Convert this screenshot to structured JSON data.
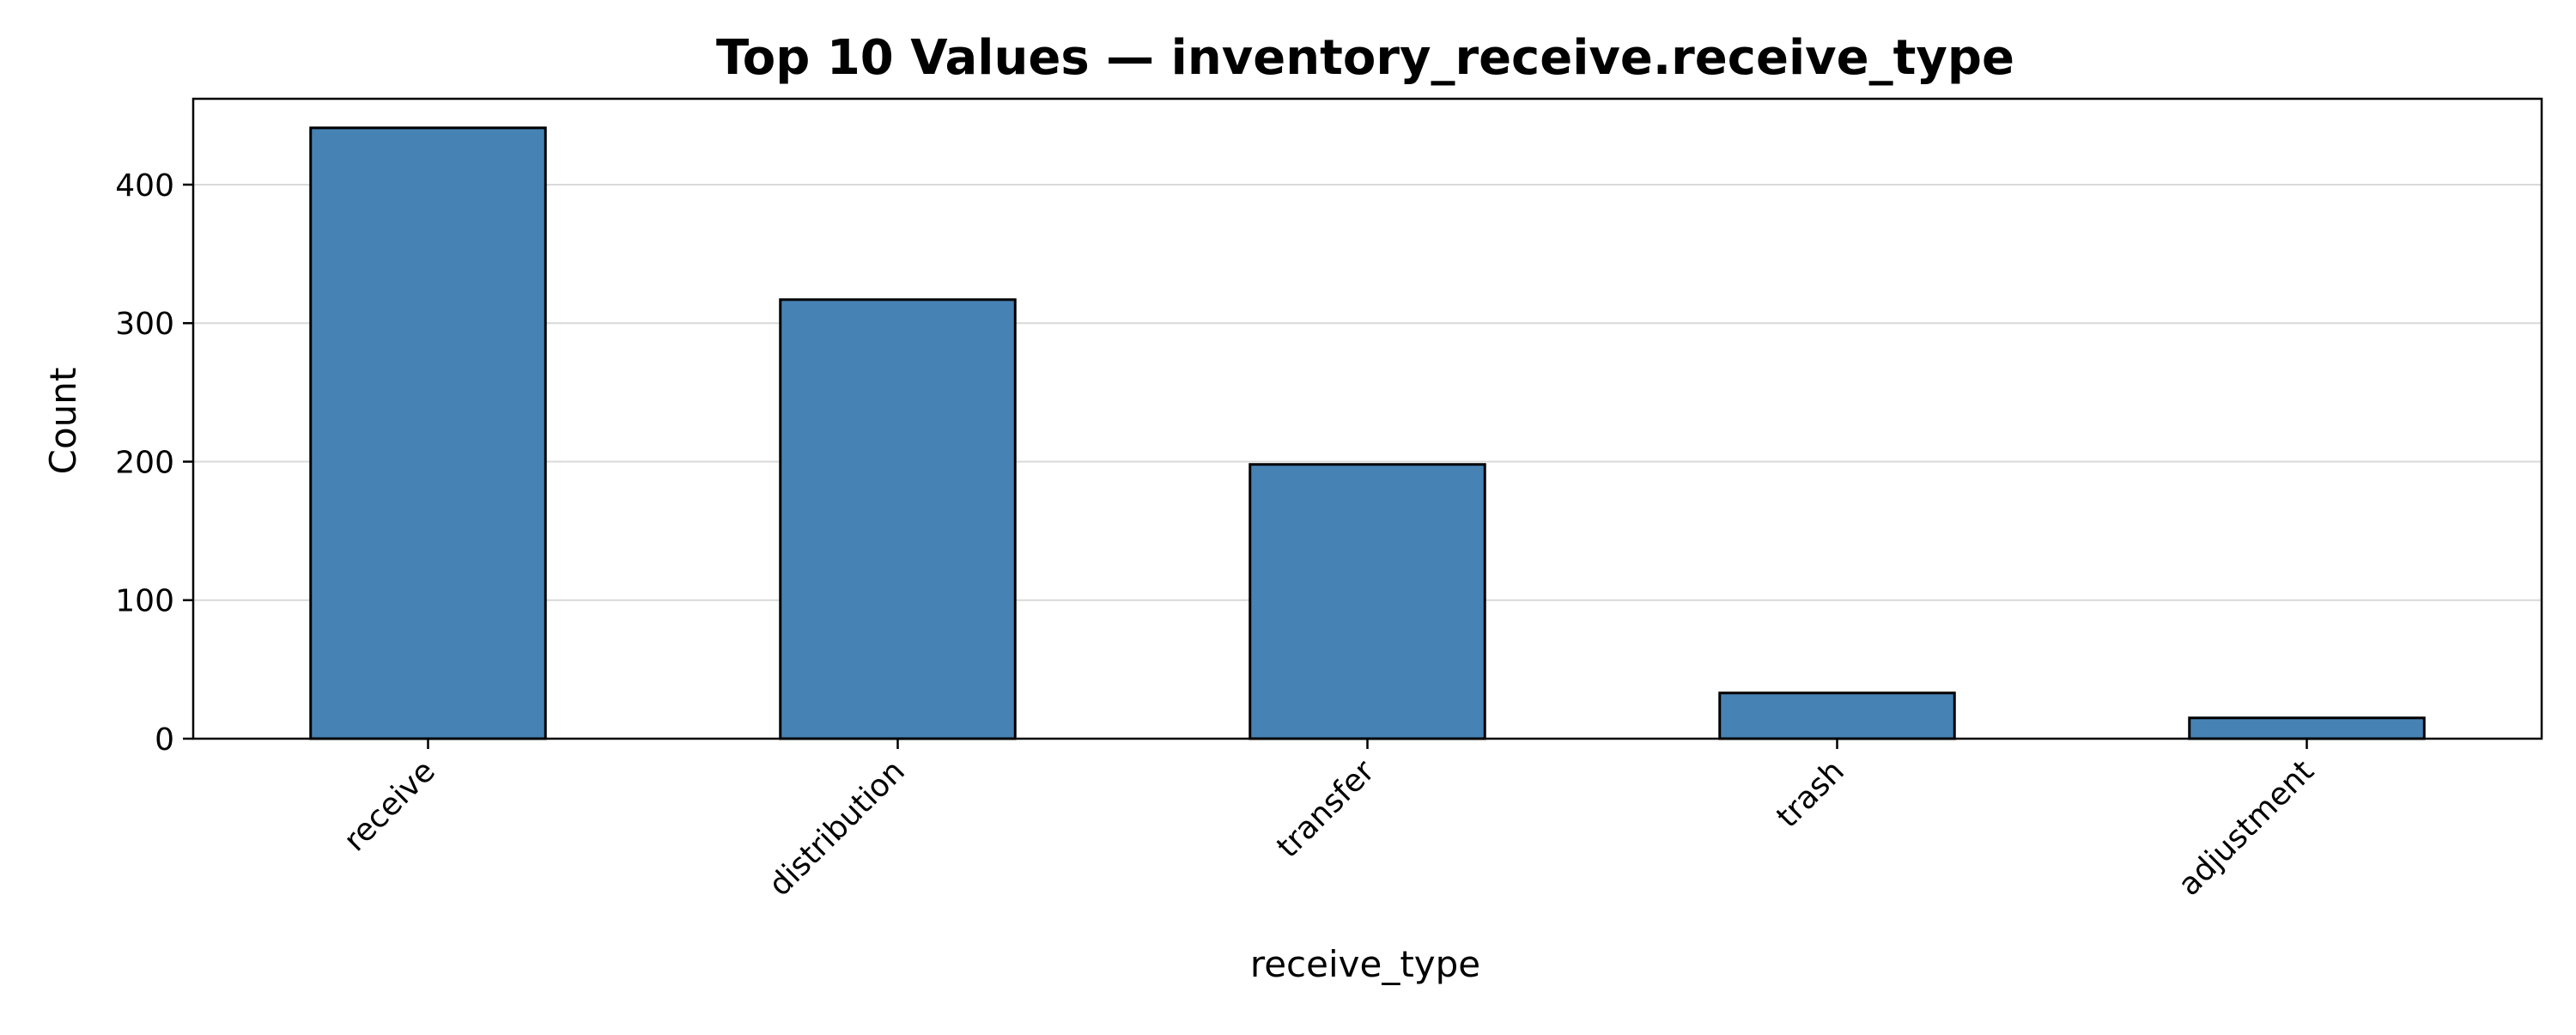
{
  "chart_data": {
    "type": "bar",
    "title": "Top 10 Values — inventory_receive.receive_type",
    "xlabel": "receive_type",
    "ylabel": "Count",
    "categories": [
      "receive",
      "distribution",
      "transfer",
      "trash",
      "adjustment"
    ],
    "values": [
      441,
      317,
      198,
      33,
      15
    ],
    "ylim": [
      0,
      462
    ],
    "yticks": [
      0,
      100,
      200,
      300,
      400
    ],
    "grid": "horizontal",
    "bar_color": "#4682B4",
    "bar_edge_color": "#000000",
    "grid_color": "#d9d9d9"
  }
}
